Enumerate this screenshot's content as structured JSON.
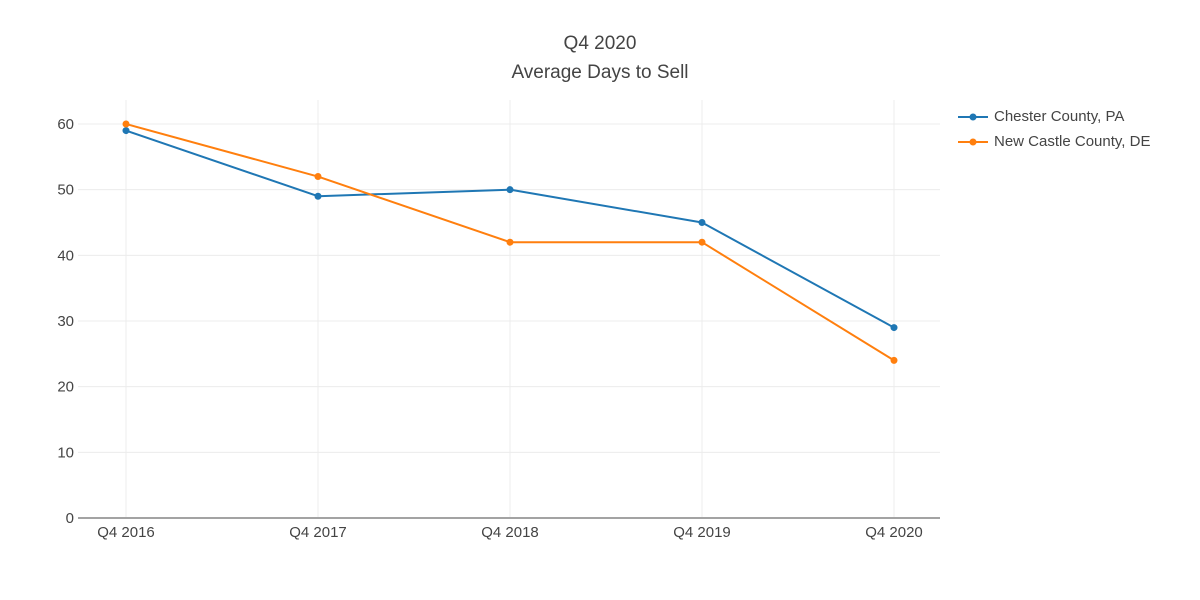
{
  "title": {
    "line1": "Q4 2020",
    "line2": "Average Days to Sell"
  },
  "chart_data": {
    "type": "line",
    "title": "Q4 2020\nAverage Days to Sell",
    "categories": [
      "Q4 2016",
      "Q4 2017",
      "Q4 2018",
      "Q4 2019",
      "Q4 2020"
    ],
    "series": [
      {
        "name": "Chester County, PA",
        "color": "#1f77b4",
        "values": [
          59,
          49,
          50,
          45,
          29
        ]
      },
      {
        "name": "New Castle County, DE",
        "color": "#ff7f0e",
        "values": [
          60,
          52,
          42,
          42,
          24
        ]
      }
    ],
    "xlabel": "",
    "ylabel": "",
    "ylim": [
      0,
      63.6
    ],
    "yticks": [
      0,
      10,
      20,
      30,
      40,
      50,
      60
    ],
    "grid": true,
    "legend_position": "right",
    "marker": "circle",
    "line_width": 2
  },
  "colors": {
    "background": "#ffffff",
    "gridline": "#ececec",
    "axis_line": "#a3a3a3",
    "text": "#444444"
  }
}
